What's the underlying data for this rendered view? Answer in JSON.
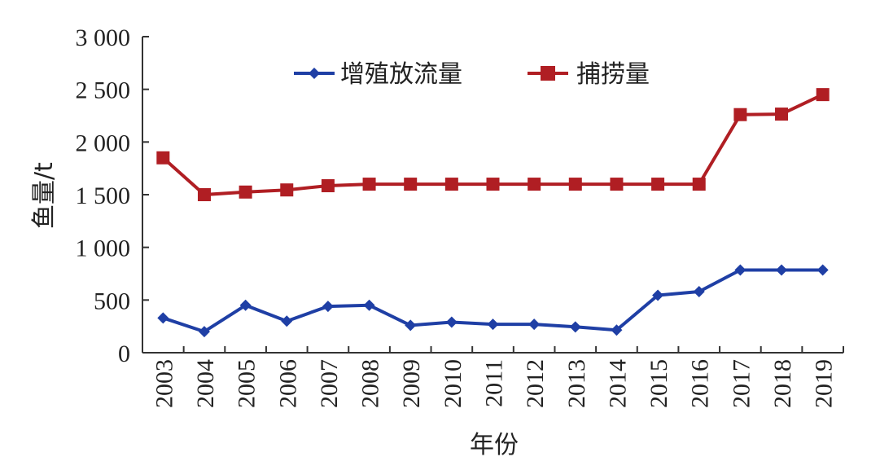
{
  "chart_data": {
    "type": "line",
    "xlabel": "年份",
    "ylabel": "鱼量/t",
    "ylim": [
      0,
      3000
    ],
    "yticks": [
      0,
      500,
      1000,
      1500,
      2000,
      2500,
      3000
    ],
    "ytick_labels": [
      "0",
      "500",
      "1 000",
      "1 500",
      "2 000",
      "2 500",
      "3 000"
    ],
    "categories": [
      "2003",
      "2004",
      "2005",
      "2006",
      "2007",
      "2008",
      "2009",
      "2010",
      "2011",
      "2012",
      "2013",
      "2014",
      "2015",
      "2016",
      "2017",
      "2018",
      "2019"
    ],
    "legend_position": "top",
    "grid": false,
    "series": [
      {
        "name": "增殖放流量",
        "color": "#1f3fa5",
        "marker": "diamond",
        "values": [
          330,
          200,
          450,
          300,
          440,
          450,
          260,
          290,
          270,
          270,
          245,
          215,
          545,
          580,
          785,
          785,
          785
        ]
      },
      {
        "name": "捕捞量",
        "color": "#b01e23",
        "marker": "square",
        "values": [
          1850,
          1500,
          1525,
          1545,
          1585,
          1600,
          1600,
          1600,
          1600,
          1600,
          1600,
          1600,
          1600,
          1600,
          2260,
          2265,
          2450
        ]
      }
    ]
  }
}
